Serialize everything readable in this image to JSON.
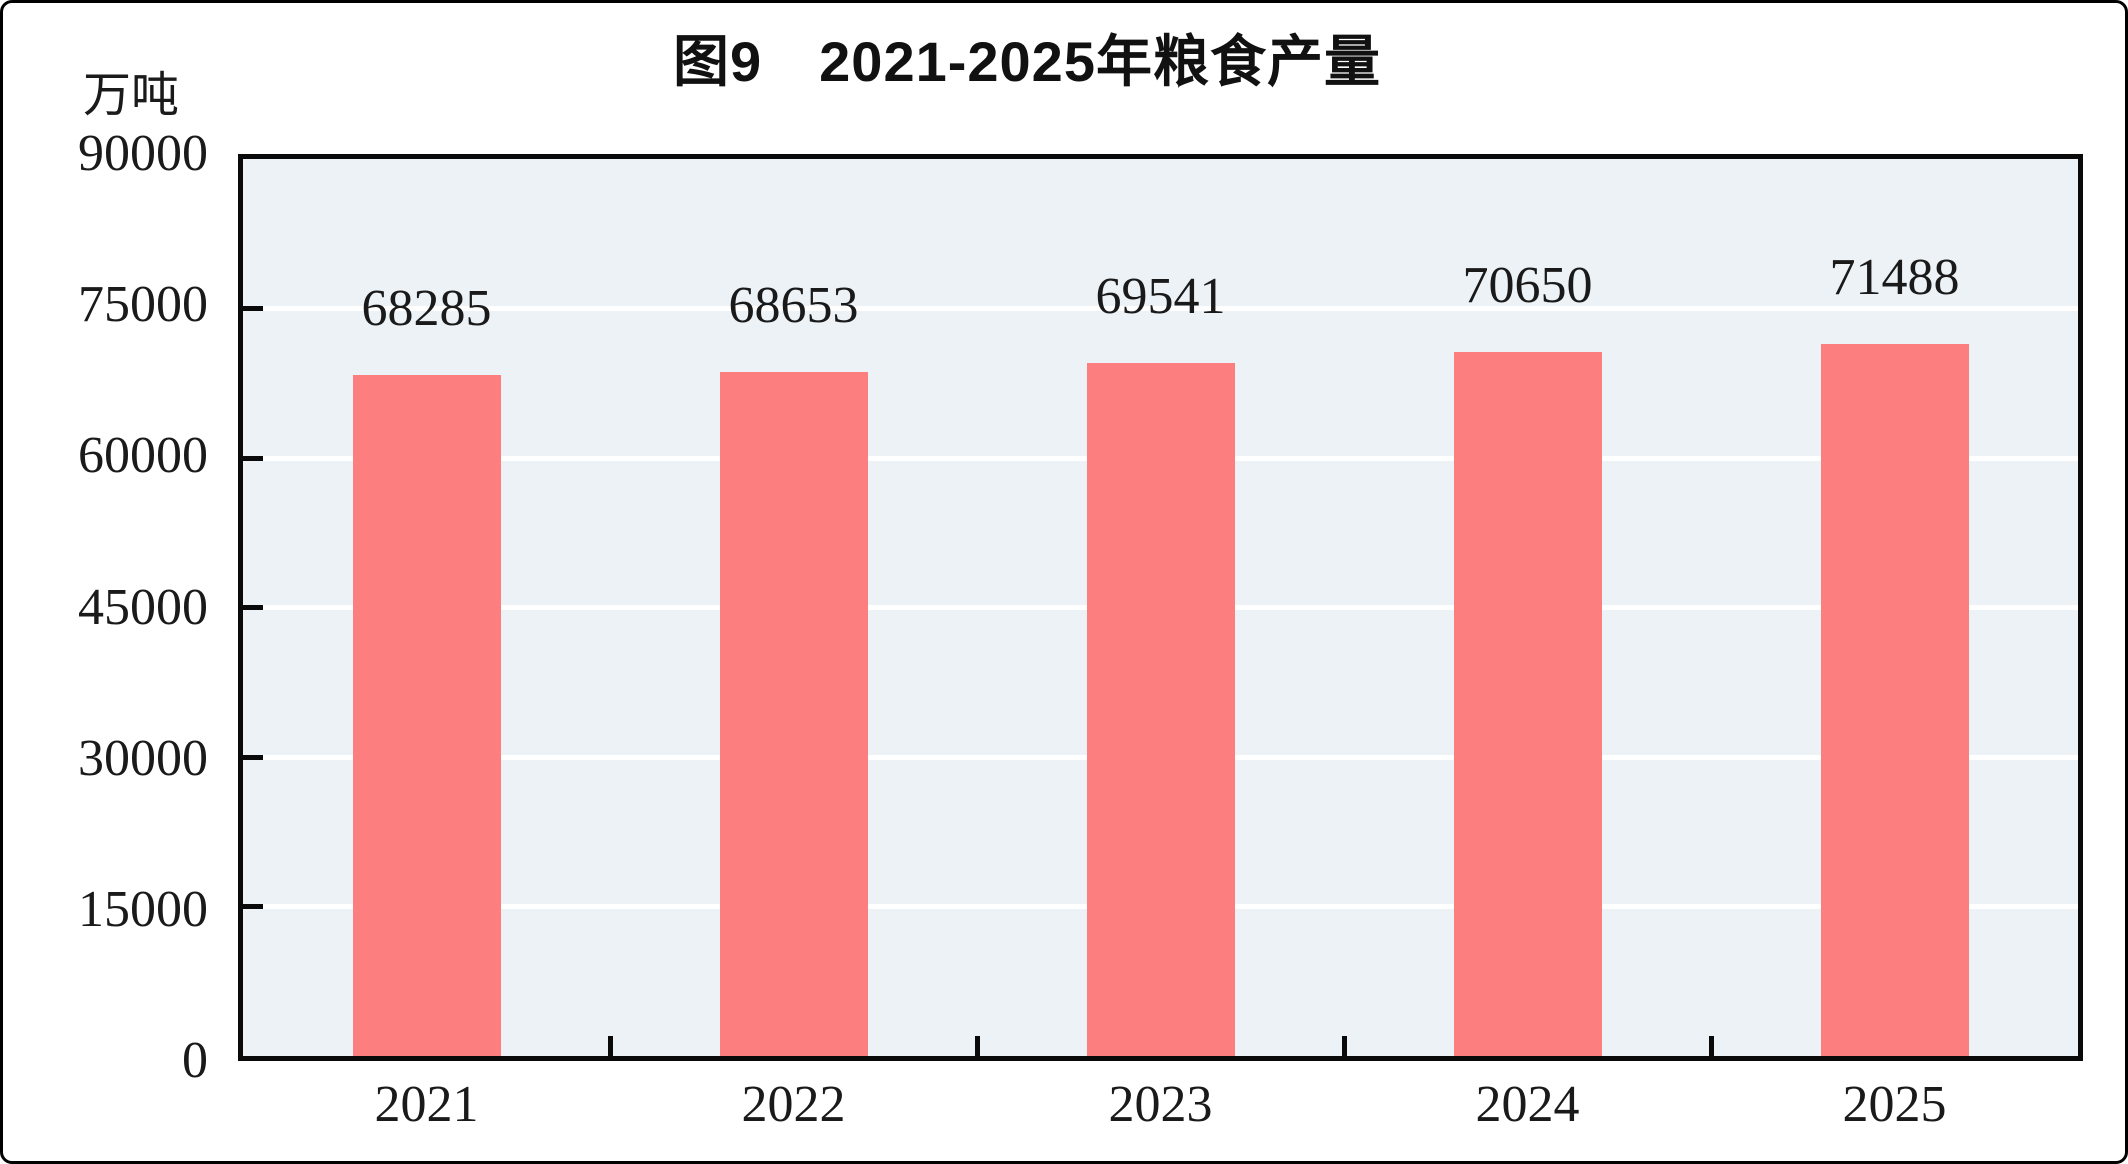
{
  "title": "图9　2021-2025年粮食产量",
  "chart_data": {
    "type": "bar",
    "title": "图9　2021-2025年粮食产量",
    "unit_label": "万吨",
    "xlabel": "",
    "ylabel": "万吨",
    "categories": [
      "2021",
      "2022",
      "2023",
      "2024",
      "2025"
    ],
    "values": [
      68285,
      68653,
      69541,
      70650,
      71488
    ],
    "value_labels": [
      "68285",
      "68653",
      "69541",
      "70650",
      "71488"
    ],
    "ylim": [
      0,
      90000
    ],
    "ytick_interval": 15000,
    "yticks": [
      0,
      15000,
      30000,
      45000,
      60000,
      75000,
      90000
    ],
    "grid": "horizontal",
    "legend": "none",
    "colors": {
      "bar": "#FC7E7E",
      "plot_background": "#ECF2F6",
      "gridline": "#FFFFFF",
      "axis": "#0A0A0A",
      "text": "#1A1A1A"
    }
  }
}
